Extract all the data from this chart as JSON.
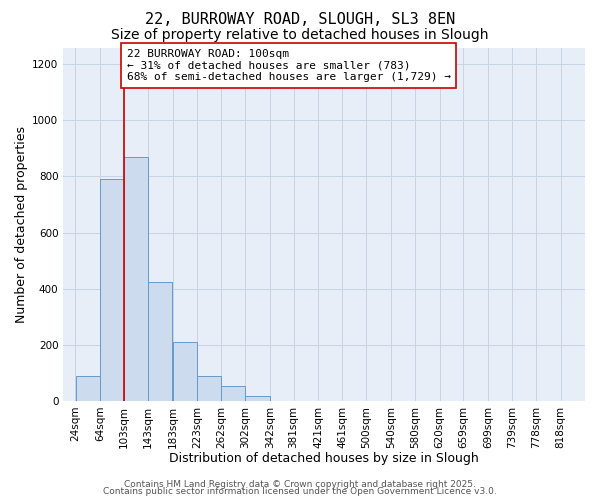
{
  "title": "22, BURROWAY ROAD, SLOUGH, SL3 8EN",
  "subtitle": "Size of property relative to detached houses in Slough",
  "xlabel": "Distribution of detached houses by size in Slough",
  "ylabel": "Number of detached properties",
  "bar_left_edges": [
    24,
    64,
    103,
    143,
    183,
    223,
    262,
    302,
    342,
    381,
    421,
    461,
    500,
    540,
    580,
    620,
    659,
    699,
    739,
    778
  ],
  "bar_widths": [
    40,
    39,
    40,
    40,
    40,
    39,
    40,
    40,
    39,
    40,
    40,
    39,
    40,
    40,
    40,
    39,
    40,
    40,
    39,
    40
  ],
  "bar_heights": [
    90,
    790,
    870,
    425,
    210,
    90,
    52,
    18,
    0,
    0,
    0,
    0,
    0,
    0,
    0,
    0,
    0,
    0,
    0,
    0
  ],
  "tick_labels": [
    "24sqm",
    "64sqm",
    "103sqm",
    "143sqm",
    "183sqm",
    "223sqm",
    "262sqm",
    "302sqm",
    "342sqm",
    "381sqm",
    "421sqm",
    "461sqm",
    "500sqm",
    "540sqm",
    "580sqm",
    "620sqm",
    "659sqm",
    "699sqm",
    "739sqm",
    "778sqm",
    "818sqm"
  ],
  "tick_positions": [
    24,
    64,
    103,
    143,
    183,
    223,
    262,
    302,
    342,
    381,
    421,
    461,
    500,
    540,
    580,
    620,
    659,
    699,
    739,
    778,
    818
  ],
  "ylim": [
    0,
    1260
  ],
  "xlim": [
    4,
    858
  ],
  "bar_color": "#ccdcee",
  "bar_edge_color": "#6699cc",
  "grid_color": "#c8d4e4",
  "bg_color": "#ffffff",
  "plot_bg_color": "#e8eef8",
  "vline_x": 103,
  "vline_color": "#cc0000",
  "annotation_text": "22 BURROWAY ROAD: 100sqm\n← 31% of detached houses are smaller (783)\n68% of semi-detached houses are larger (1,729) →",
  "annotation_box_color": "#ffffff",
  "annotation_box_edge": "#cc0000",
  "footer1": "Contains HM Land Registry data © Crown copyright and database right 2025.",
  "footer2": "Contains public sector information licensed under the Open Government Licence v3.0.",
  "title_fontsize": 11,
  "subtitle_fontsize": 10,
  "axis_label_fontsize": 9,
  "tick_fontsize": 7.5,
  "annotation_fontsize": 8,
  "footer_fontsize": 6.5,
  "yticks": [
    0,
    200,
    400,
    600,
    800,
    1000,
    1200
  ]
}
